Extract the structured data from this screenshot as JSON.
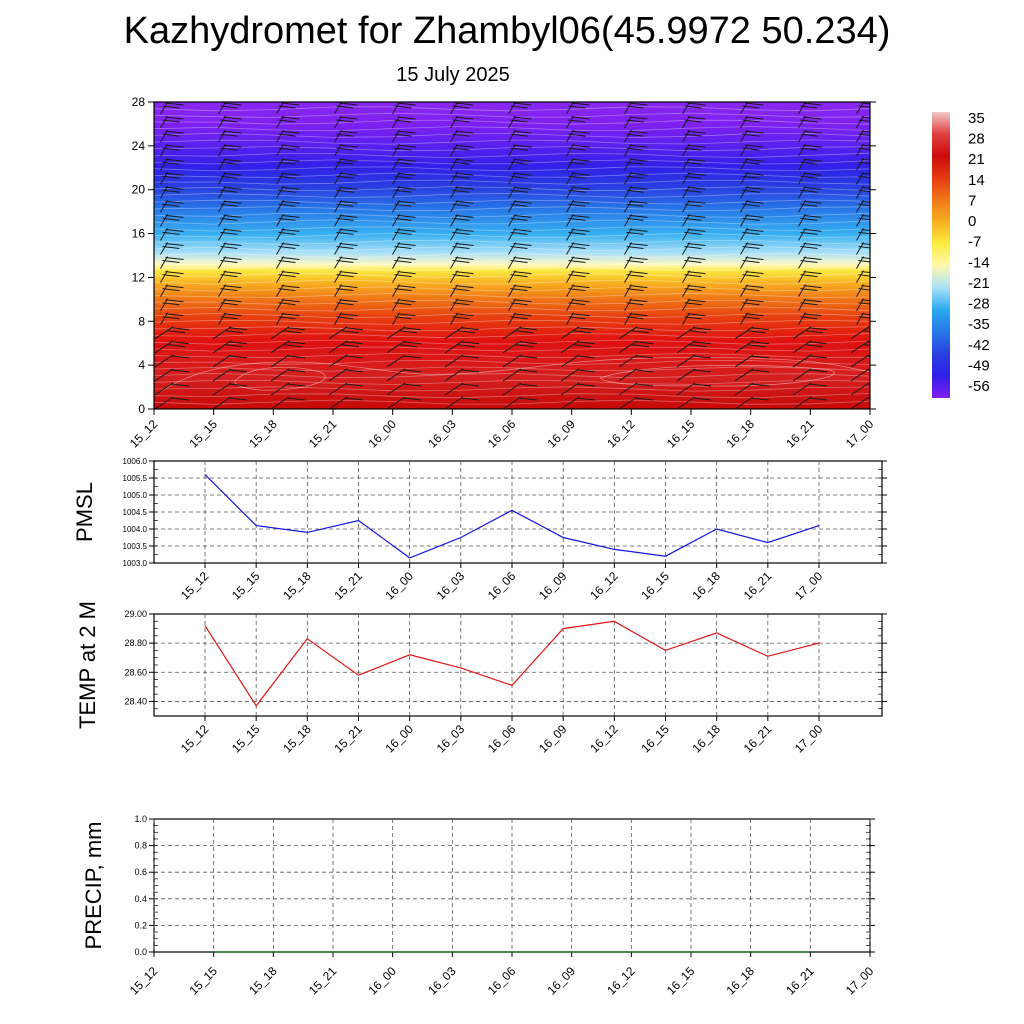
{
  "title": "Kazhydromet for Zhambyl06(45.9972 50.234)",
  "subtitle": "15 July 2025",
  "colors": {
    "pmsl_line": "#1414e0",
    "temp_line": "#e01414",
    "precip_line": "#006400",
    "grid": "#555555"
  },
  "chart_data": [
    {
      "id": "temperature-profile",
      "type": "heatmap",
      "x_ticks": [
        "15_12",
        "15_15",
        "15_18",
        "15_21",
        "16_00",
        "16_03",
        "16_06",
        "16_09",
        "16_12",
        "16_15",
        "16_18",
        "16_21",
        "17_00"
      ],
      "y_ticks": [
        "0",
        "4",
        "8",
        "12",
        "16",
        "20",
        "24",
        "28"
      ],
      "ylim": [
        0,
        28
      ],
      "colorbar": {
        "labels": [
          "35",
          "28",
          "21",
          "14",
          "7",
          "0",
          "-7",
          "-14",
          "-21",
          "-28",
          "-35",
          "-42",
          "-49",
          "-56"
        ],
        "stops": [
          "#f0c8c8",
          "#e04040",
          "#cc0a0a",
          "#e63a10",
          "#f07818",
          "#f8b020",
          "#fcec40",
          "#fff8b0",
          "#a8e0f8",
          "#28a8f0",
          "#2878e8",
          "#2840e0",
          "#3020e8",
          "#8020f0"
        ]
      },
      "wind_barbs": true
    },
    {
      "id": "pmsl",
      "type": "line",
      "ylabel": "PMSL",
      "ylim": [
        1003.0,
        1006.0
      ],
      "y_ticks": [
        "1006.0",
        "1005.5",
        "1005.0",
        "1004.5",
        "1004.0",
        "1003.5",
        "1003.0"
      ],
      "categories": [
        "15_12",
        "15_15",
        "15_18",
        "15_21",
        "16_00",
        "16_03",
        "16_06",
        "16_09",
        "16_12",
        "16_15",
        "16_18",
        "16_21",
        "17_00"
      ],
      "values": [
        1005.6,
        1004.1,
        1003.9,
        1004.25,
        1003.15,
        1003.75,
        1004.55,
        1003.75,
        1003.4,
        1003.2,
        1004.0,
        1003.6,
        1004.1
      ],
      "grid": true
    },
    {
      "id": "temp-2m",
      "type": "line",
      "ylabel": "TEMP at 2 M",
      "ylim": [
        28.3,
        29.0
      ],
      "y_ticks": [
        "29.00",
        "28.80",
        "28.60",
        "28.40"
      ],
      "categories": [
        "15_12",
        "15_15",
        "15_18",
        "15_21",
        "16_00",
        "16_03",
        "16_06",
        "16_09",
        "16_12",
        "16_15",
        "16_18",
        "16_21",
        "17_00"
      ],
      "values": [
        28.92,
        28.37,
        28.83,
        28.58,
        28.72,
        28.63,
        28.51,
        28.9,
        28.95,
        28.75,
        28.87,
        28.71,
        28.8
      ],
      "grid": true
    },
    {
      "id": "precip",
      "type": "line",
      "ylabel": "PRECIP, mm",
      "ylim": [
        0.0,
        1.0
      ],
      "y_ticks": [
        "1.0",
        "0.8",
        "0.6",
        "0.4",
        "0.2",
        "0.0"
      ],
      "categories": [
        "15_15",
        "15_18",
        "15_21",
        "16_00",
        "16_03",
        "16_06",
        "16_09",
        "16_12",
        "16_15",
        "16_18",
        "16_21"
      ],
      "x_ticks": [
        "15_12",
        "15_15",
        "15_18",
        "15_21",
        "16_00",
        "16_03",
        "16_06",
        "16_09",
        "16_12",
        "16_15",
        "16_18",
        "16_21",
        "17_00"
      ],
      "values": [
        0,
        0,
        0,
        0,
        0,
        0,
        0,
        0,
        0,
        0,
        0
      ],
      "grid": true
    }
  ]
}
